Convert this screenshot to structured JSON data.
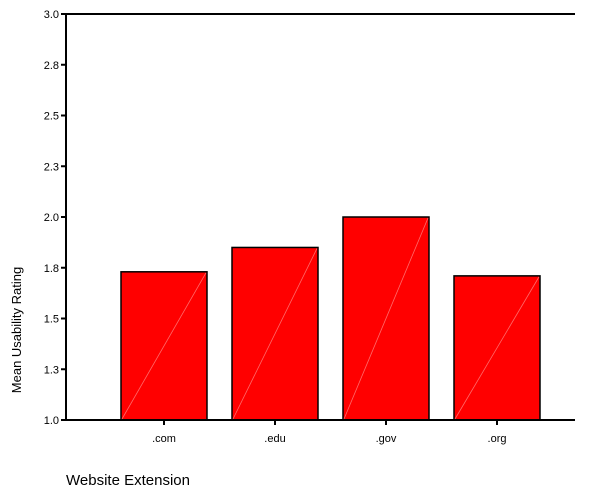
{
  "chart_data": {
    "type": "bar",
    "categories": [
      ".com",
      ".edu",
      ".gov",
      ".org"
    ],
    "values": [
      1.73,
      1.85,
      2.0,
      1.71
    ],
    "title": "",
    "xlabel": "Website Extension",
    "ylabel": "Mean Usability Rating",
    "ylim": [
      1.0,
      3.0
    ],
    "ytick_labels": [
      "3.0",
      "2.8",
      "2.5",
      "2.3",
      "2.0",
      "1.8",
      "1.5",
      "1.3",
      "1.0"
    ],
    "ytick_values": [
      3.0,
      2.75,
      2.5,
      2.25,
      2.0,
      1.75,
      1.5,
      1.25,
      1.0
    ],
    "grid": false,
    "legend": "none",
    "bar_color": "#ff0000",
    "bar_edge_color": "#000000"
  }
}
